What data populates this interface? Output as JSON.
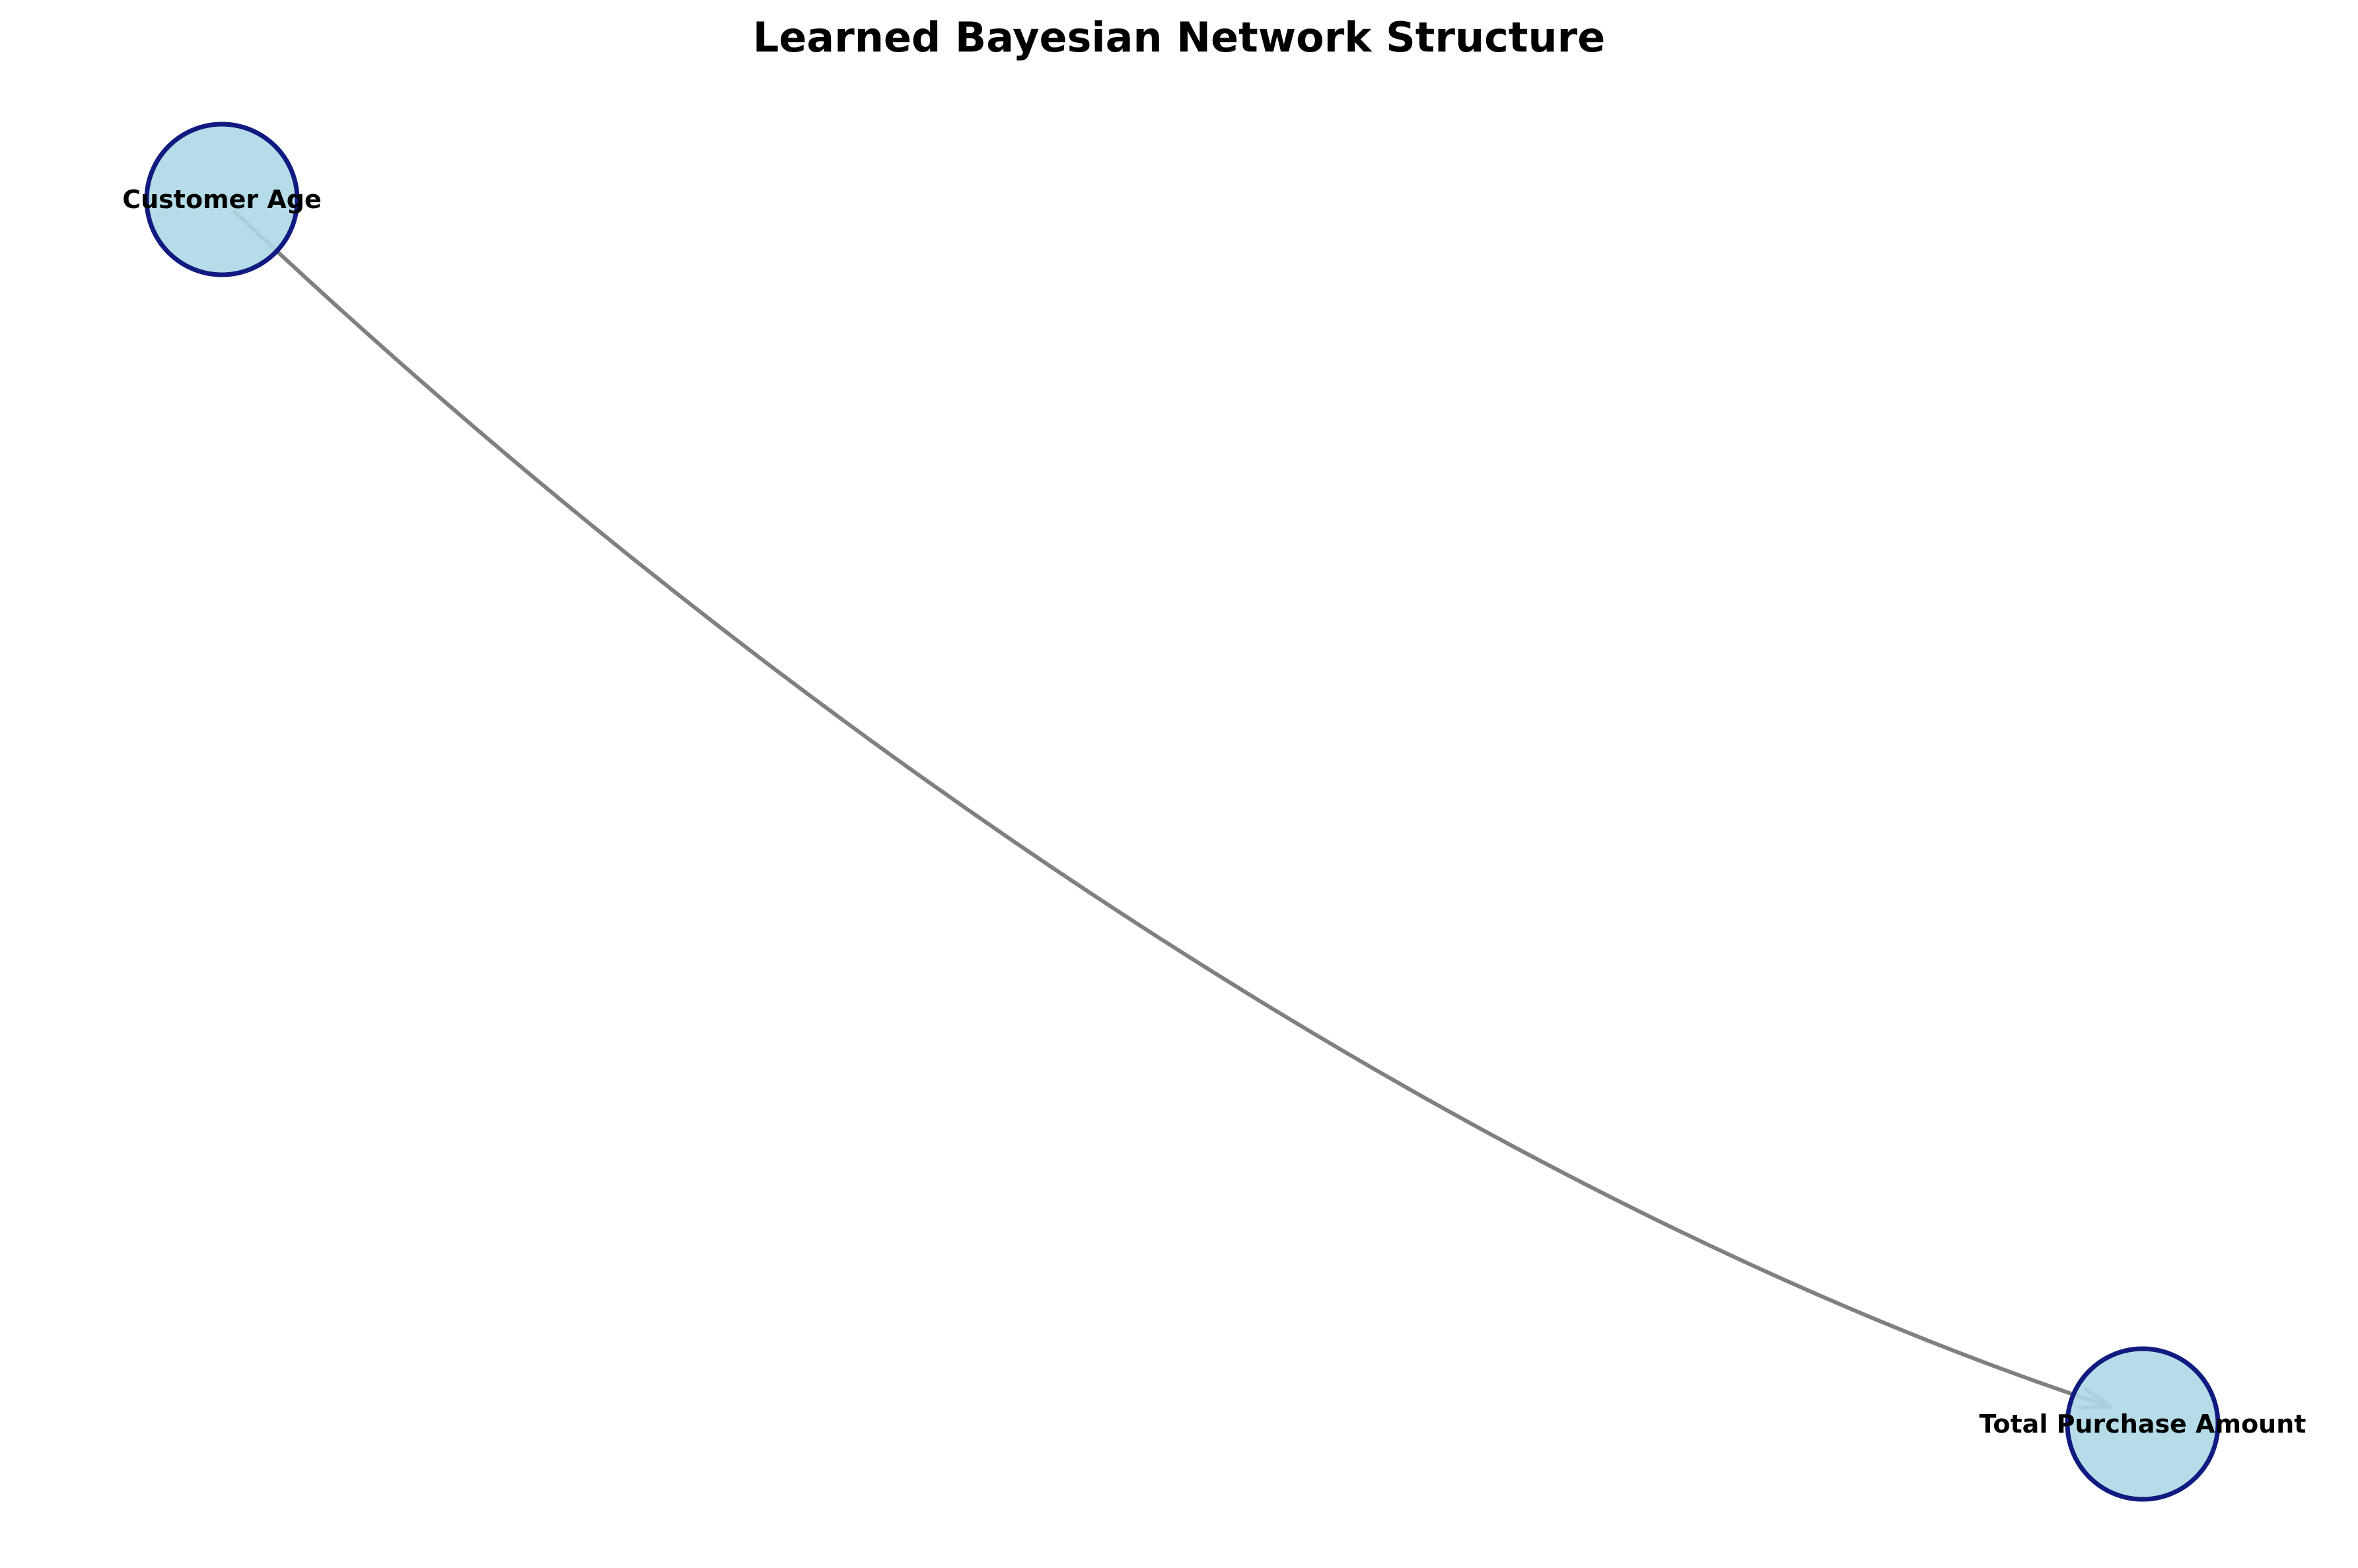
{
  "diagram": {
    "title": "Learned Bayesian Network Structure",
    "nodes": [
      {
        "id": "customer_age",
        "label": "Customer Age"
      },
      {
        "id": "total_purchase_amount",
        "label": "Total Purchase Amount"
      }
    ],
    "edges": [
      {
        "from": "customer_age",
        "to": "total_purchase_amount",
        "directed": true
      }
    ],
    "colors": {
      "node_fill": "#add8e6",
      "node_stroke": "#000080",
      "edge": "#808080",
      "title": "#000000",
      "label": "#000000"
    }
  }
}
